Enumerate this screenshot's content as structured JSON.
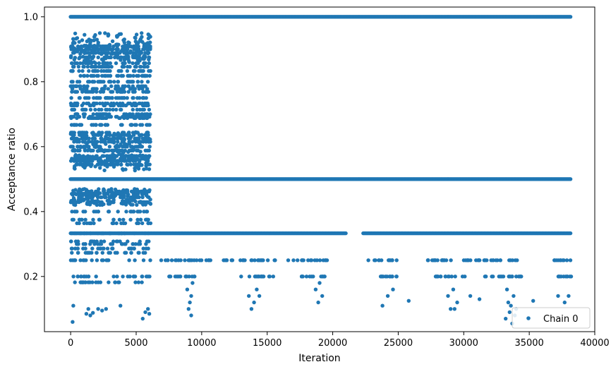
{
  "chart_data": {
    "type": "scatter",
    "title": "",
    "xlabel": "Iteration",
    "ylabel": "Acceptance ratio",
    "xlim": [
      -2000,
      40000
    ],
    "ylim": [
      0.03,
      1.03
    ],
    "x_ticks": [
      0,
      5000,
      10000,
      15000,
      20000,
      25000,
      30000,
      35000,
      40000
    ],
    "x_tick_labels": [
      "0",
      "5000",
      "10000",
      "15000",
      "20000",
      "25000",
      "30000",
      "35000",
      "40000"
    ],
    "y_ticks": [
      0.2,
      0.4,
      0.6,
      0.8,
      1.0
    ],
    "y_tick_labels": [
      "0.2",
      "0.4",
      "0.6",
      "0.8",
      "1.0"
    ],
    "grid": false,
    "legend": {
      "position": "lower-right",
      "entries": [
        "Chain 0"
      ]
    },
    "marker_color": "#1f77b4",
    "series": [
      {
        "name": "Chain 0",
        "bands": [
          {
            "y": 1.0,
            "x_range": [
              0,
              38200
            ],
            "dense": true
          },
          {
            "y": 0.5,
            "x_range": [
              0,
              38200
            ],
            "dense": true
          },
          {
            "y": 0.333,
            "x_range": [
              0,
              38200
            ],
            "dense": true,
            "gaps": [
              [
                21000,
                22300
              ]
            ]
          },
          {
            "y": 0.25,
            "x_ranges": [
              [
                6800,
                8500
              ],
              [
                8700,
                10800
              ],
              [
                11600,
                15800
              ],
              [
                16600,
                20000
              ],
              [
                22500,
                25000
              ],
              [
                27000,
                34500
              ],
              [
                36800,
                38200
              ]
            ],
            "dense": false
          },
          {
            "y": 0.2,
            "x_ranges": [
              [
                7500,
                9500
              ],
              [
                13000,
                15600
              ],
              [
                17500,
                19500
              ],
              [
                23000,
                25000
              ],
              [
                27800,
                30300
              ],
              [
                31500,
                34500
              ],
              [
                36800,
                38200
              ]
            ],
            "dense": false
          }
        ],
        "early_phase": {
          "x_range": [
            0,
            6100
          ],
          "y_levels": [
            0.909,
            0.9,
            0.889,
            0.875,
            0.857,
            0.846,
            0.833,
            0.818,
            0.8,
            0.786,
            0.778,
            0.769,
            0.75,
            0.733,
            0.727,
            0.714,
            0.7,
            0.692,
            0.688,
            0.667,
            0.643,
            0.636,
            0.625,
            0.615,
            0.6,
            0.588,
            0.571,
            0.563,
            0.556,
            0.545,
            0.462,
            0.455,
            0.444,
            0.429,
            0.4,
            0.375,
            0.364,
            0.333,
            0.308,
            0.3,
            0.286,
            0.273,
            0.25,
            0.2,
            0.182
          ],
          "noisy_ranges": [
            [
              0.86,
              0.95
            ],
            [
              0.525,
              0.645
            ],
            [
              0.42,
              0.47
            ]
          ]
        },
        "sparse_points": [
          [
            150,
            0.06
          ],
          [
            200,
            0.11
          ],
          [
            1200,
            0.085
          ],
          [
            1350,
            0.1
          ],
          [
            1500,
            0.08
          ],
          [
            1700,
            0.088
          ],
          [
            2100,
            0.1
          ],
          [
            2400,
            0.095
          ],
          [
            2700,
            0.1
          ],
          [
            3800,
            0.11
          ],
          [
            5500,
            0.07
          ],
          [
            5700,
            0.09
          ],
          [
            5900,
            0.1
          ],
          [
            6000,
            0.085
          ],
          [
            9200,
            0.08
          ],
          [
            9000,
            0.1
          ],
          [
            9100,
            0.12
          ],
          [
            9200,
            0.14
          ],
          [
            8900,
            0.16
          ],
          [
            9300,
            0.18
          ],
          [
            13800,
            0.1
          ],
          [
            14000,
            0.12
          ],
          [
            13600,
            0.14
          ],
          [
            14200,
            0.16
          ],
          [
            14400,
            0.14
          ],
          [
            18900,
            0.12
          ],
          [
            19200,
            0.14
          ],
          [
            18700,
            0.16
          ],
          [
            19000,
            0.18
          ],
          [
            23800,
            0.11
          ],
          [
            24200,
            0.14
          ],
          [
            24600,
            0.16
          ],
          [
            25800,
            0.125
          ],
          [
            29000,
            0.1
          ],
          [
            29300,
            0.1
          ],
          [
            29500,
            0.12
          ],
          [
            28800,
            0.14
          ],
          [
            29200,
            0.16
          ],
          [
            30500,
            0.14
          ],
          [
            31200,
            0.13
          ],
          [
            33200,
            0.07
          ],
          [
            33500,
            0.09
          ],
          [
            33700,
            0.055
          ],
          [
            33900,
            0.08
          ],
          [
            33600,
            0.11
          ],
          [
            33400,
            0.12
          ],
          [
            33800,
            0.14
          ],
          [
            34000,
            0.1
          ],
          [
            33300,
            0.16
          ],
          [
            35300,
            0.125
          ],
          [
            37200,
            0.14
          ],
          [
            37700,
            0.12
          ],
          [
            38000,
            0.14
          ]
        ]
      }
    ]
  }
}
